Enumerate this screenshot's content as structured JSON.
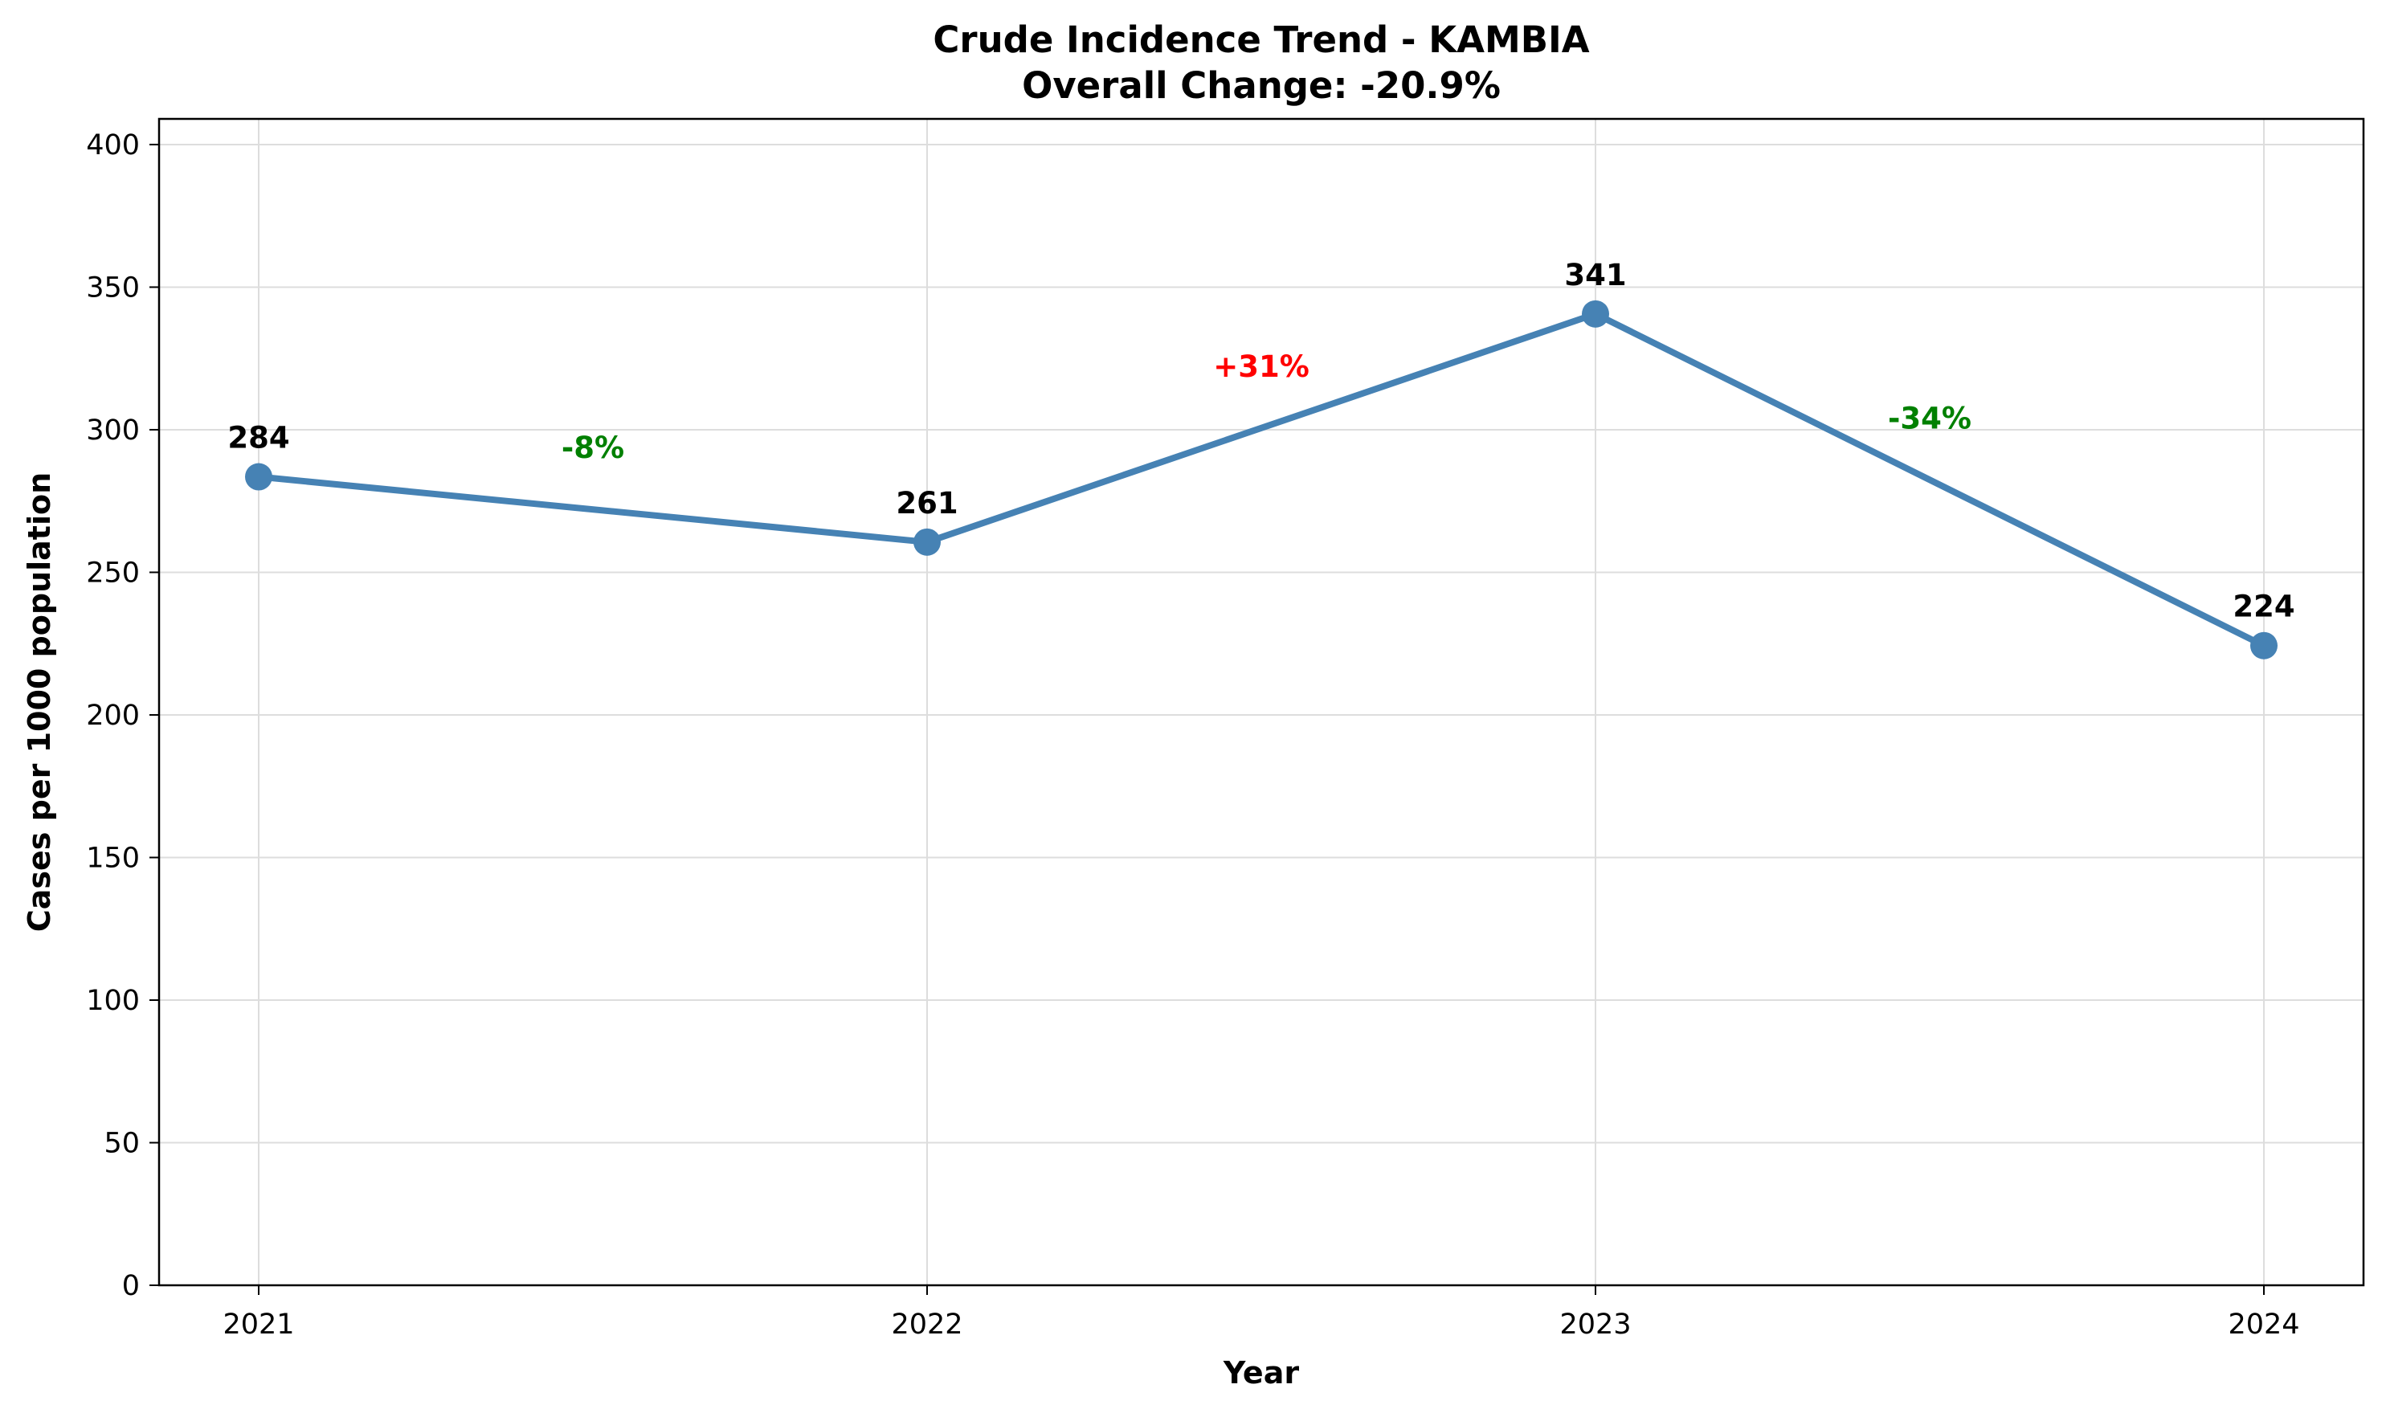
{
  "chart_data": {
    "type": "line",
    "title": "Crude Incidence Trend - KAMBIA",
    "subtitle": "Overall Change: -20.9%",
    "xlabel": "Year",
    "ylabel": "Cases per 1000 population",
    "categories": [
      "2021",
      "2022",
      "2023",
      "2024"
    ],
    "series": [
      {
        "values": [
          283.5,
          260.6,
          340.6,
          224.3
        ],
        "color": "#4682b4"
      }
    ],
    "data_labels": [
      "284",
      "261",
      "341",
      "224"
    ],
    "changes": [
      {
        "text": "-8%",
        "color": "#008000"
      },
      {
        "text": "+31%",
        "color": "#ff0000"
      },
      {
        "text": "-34%",
        "color": "#008000"
      }
    ],
    "yticks": [
      0,
      50,
      100,
      150,
      200,
      250,
      300,
      350,
      400
    ],
    "ylim": [
      0,
      409
    ],
    "grid": true,
    "legend": "none"
  }
}
